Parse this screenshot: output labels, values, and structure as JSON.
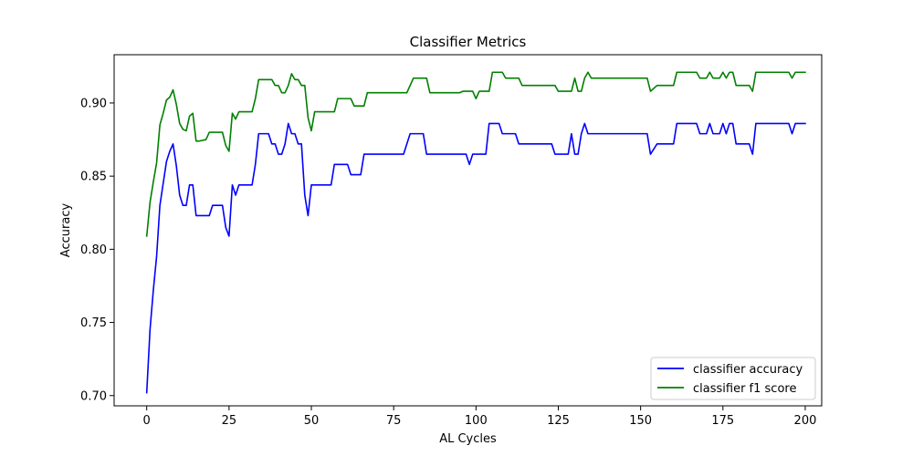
{
  "chart_data": {
    "type": "line",
    "title": "Classifier Metrics",
    "xlabel": "AL Cycles",
    "ylabel": "Accuracy",
    "xlim": [
      -9.9,
      205
    ],
    "ylim": [
      0.693,
      0.933
    ],
    "xticks": [
      0,
      25,
      50,
      75,
      100,
      125,
      150,
      175,
      200
    ],
    "yticks": [
      0.7,
      0.75,
      0.8,
      0.85,
      0.9
    ],
    "ytick_labels": [
      "0.70",
      "0.75",
      "0.80",
      "0.85",
      "0.90"
    ],
    "grid": false,
    "legend_position": "lower-right",
    "series": [
      {
        "name": "classifier accuracy",
        "color": "#0000ff",
        "points": [
          [
            0,
            0.702
          ],
          [
            1,
            0.745
          ],
          [
            2,
            0.772
          ],
          [
            3,
            0.795
          ],
          [
            4,
            0.83
          ],
          [
            5,
            0.845
          ],
          [
            6,
            0.86
          ],
          [
            7,
            0.867
          ],
          [
            8,
            0.872
          ],
          [
            9,
            0.857
          ],
          [
            10,
            0.837
          ],
          [
            11,
            0.83
          ],
          [
            12,
            0.83
          ],
          [
            13,
            0.844
          ],
          [
            14,
            0.844
          ],
          [
            15,
            0.823
          ],
          [
            16,
            0.823
          ],
          [
            19,
            0.823
          ],
          [
            20,
            0.83
          ],
          [
            23,
            0.83
          ],
          [
            24,
            0.815
          ],
          [
            25,
            0.809
          ],
          [
            26,
            0.844
          ],
          [
            27,
            0.837
          ],
          [
            28,
            0.844
          ],
          [
            32,
            0.844
          ],
          [
            33,
            0.858
          ],
          [
            34,
            0.879
          ],
          [
            37,
            0.879
          ],
          [
            38,
            0.872
          ],
          [
            39,
            0.872
          ],
          [
            40,
            0.865
          ],
          [
            41,
            0.865
          ],
          [
            42,
            0.872
          ],
          [
            43,
            0.886
          ],
          [
            44,
            0.879
          ],
          [
            45,
            0.879
          ],
          [
            46,
            0.872
          ],
          [
            47,
            0.872
          ],
          [
            48,
            0.837
          ],
          [
            49,
            0.823
          ],
          [
            50,
            0.844
          ],
          [
            56,
            0.844
          ],
          [
            57,
            0.858
          ],
          [
            61,
            0.858
          ],
          [
            62,
            0.851
          ],
          [
            65,
            0.851
          ],
          [
            66,
            0.865
          ],
          [
            78,
            0.865
          ],
          [
            80,
            0.879
          ],
          [
            84,
            0.879
          ],
          [
            85,
            0.865
          ],
          [
            97,
            0.865
          ],
          [
            98,
            0.858
          ],
          [
            99,
            0.865
          ],
          [
            103,
            0.865
          ],
          [
            104,
            0.886
          ],
          [
            107,
            0.886
          ],
          [
            108,
            0.879
          ],
          [
            112,
            0.879
          ],
          [
            113,
            0.872
          ],
          [
            123,
            0.872
          ],
          [
            124,
            0.865
          ],
          [
            128,
            0.865
          ],
          [
            129,
            0.879
          ],
          [
            130,
            0.865
          ],
          [
            131,
            0.865
          ],
          [
            132,
            0.879
          ],
          [
            133,
            0.886
          ],
          [
            134,
            0.879
          ],
          [
            152,
            0.879
          ],
          [
            153,
            0.865
          ],
          [
            155,
            0.872
          ],
          [
            160,
            0.872
          ],
          [
            161,
            0.886
          ],
          [
            167,
            0.886
          ],
          [
            168,
            0.879
          ],
          [
            170,
            0.879
          ],
          [
            171,
            0.886
          ],
          [
            172,
            0.879
          ],
          [
            174,
            0.879
          ],
          [
            175,
            0.886
          ],
          [
            176,
            0.879
          ],
          [
            177,
            0.886
          ],
          [
            178,
            0.886
          ],
          [
            179,
            0.872
          ],
          [
            183,
            0.872
          ],
          [
            184,
            0.865
          ],
          [
            185,
            0.886
          ],
          [
            195,
            0.886
          ],
          [
            196,
            0.879
          ],
          [
            197,
            0.886
          ],
          [
            200,
            0.886
          ]
        ]
      },
      {
        "name": "classifier f1 score",
        "color": "#008000",
        "points": [
          [
            0,
            0.809
          ],
          [
            1,
            0.832
          ],
          [
            2,
            0.846
          ],
          [
            3,
            0.859
          ],
          [
            4,
            0.885
          ],
          [
            5,
            0.893
          ],
          [
            6,
            0.902
          ],
          [
            7,
            0.904
          ],
          [
            8,
            0.909
          ],
          [
            9,
            0.899
          ],
          [
            10,
            0.886
          ],
          [
            11,
            0.882
          ],
          [
            12,
            0.881
          ],
          [
            13,
            0.891
          ],
          [
            14,
            0.893
          ],
          [
            15,
            0.874
          ],
          [
            16,
            0.874
          ],
          [
            18,
            0.875
          ],
          [
            19,
            0.88
          ],
          [
            23,
            0.88
          ],
          [
            24,
            0.871
          ],
          [
            25,
            0.867
          ],
          [
            26,
            0.893
          ],
          [
            27,
            0.889
          ],
          [
            28,
            0.894
          ],
          [
            32,
            0.894
          ],
          [
            33,
            0.903
          ],
          [
            34,
            0.916
          ],
          [
            38,
            0.916
          ],
          [
            39,
            0.912
          ],
          [
            40,
            0.912
          ],
          [
            41,
            0.907
          ],
          [
            42,
            0.907
          ],
          [
            43,
            0.912
          ],
          [
            44,
            0.92
          ],
          [
            45,
            0.916
          ],
          [
            46,
            0.916
          ],
          [
            47,
            0.912
          ],
          [
            48,
            0.912
          ],
          [
            49,
            0.89
          ],
          [
            50,
            0.881
          ],
          [
            51,
            0.894
          ],
          [
            57,
            0.894
          ],
          [
            58,
            0.903
          ],
          [
            62,
            0.903
          ],
          [
            63,
            0.898
          ],
          [
            66,
            0.898
          ],
          [
            67,
            0.907
          ],
          [
            79,
            0.907
          ],
          [
            81,
            0.917
          ],
          [
            85,
            0.917
          ],
          [
            86,
            0.907
          ],
          [
            95,
            0.907
          ],
          [
            96,
            0.908
          ],
          [
            99,
            0.908
          ],
          [
            100,
            0.903
          ],
          [
            101,
            0.908
          ],
          [
            104,
            0.908
          ],
          [
            105,
            0.921
          ],
          [
            108,
            0.921
          ],
          [
            109,
            0.917
          ],
          [
            113,
            0.917
          ],
          [
            114,
            0.912
          ],
          [
            124,
            0.912
          ],
          [
            125,
            0.908
          ],
          [
            129,
            0.908
          ],
          [
            130,
            0.917
          ],
          [
            131,
            0.908
          ],
          [
            132,
            0.908
          ],
          [
            133,
            0.917
          ],
          [
            134,
            0.921
          ],
          [
            135,
            0.917
          ],
          [
            152,
            0.917
          ],
          [
            153,
            0.908
          ],
          [
            155,
            0.912
          ],
          [
            160,
            0.912
          ],
          [
            161,
            0.921
          ],
          [
            167,
            0.921
          ],
          [
            168,
            0.917
          ],
          [
            170,
            0.917
          ],
          [
            171,
            0.921
          ],
          [
            172,
            0.917
          ],
          [
            174,
            0.917
          ],
          [
            175,
            0.921
          ],
          [
            176,
            0.917
          ],
          [
            177,
            0.921
          ],
          [
            178,
            0.921
          ],
          [
            179,
            0.912
          ],
          [
            183,
            0.912
          ],
          [
            184,
            0.908
          ],
          [
            185,
            0.921
          ],
          [
            195,
            0.921
          ],
          [
            196,
            0.917
          ],
          [
            197,
            0.921
          ],
          [
            200,
            0.921
          ]
        ]
      }
    ]
  }
}
